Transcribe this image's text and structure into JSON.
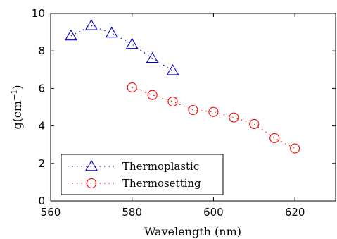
{
  "chart_data": {
    "type": "scatter",
    "title": "",
    "xlabel": "Wavelength (nm)",
    "ylabel_base": "g(cm",
    "ylabel_sup": "−1",
    "ylabel_tail": ")",
    "xlim": [
      560,
      630
    ],
    "ylim": [
      0,
      10
    ],
    "xticks": [
      560,
      580,
      600,
      620
    ],
    "yticks": [
      0,
      2,
      4,
      6,
      8,
      10
    ],
    "grid": false,
    "legend_position": "bottom-left",
    "series": [
      {
        "name": "Thermoplastic",
        "marker": "triangle",
        "color": "#0000cc",
        "x": [
          565,
          570,
          575,
          580,
          585,
          590
        ],
        "y": [
          8.8,
          9.35,
          8.95,
          8.35,
          7.6,
          6.95
        ]
      },
      {
        "name": "Thermosetting",
        "marker": "circle",
        "color": "#ff0000",
        "x": [
          580,
          585,
          590,
          595,
          600,
          605,
          610,
          615,
          620
        ],
        "y": [
          6.05,
          5.65,
          5.3,
          4.85,
          4.75,
          4.45,
          4.1,
          3.35,
          2.8
        ]
      }
    ]
  }
}
